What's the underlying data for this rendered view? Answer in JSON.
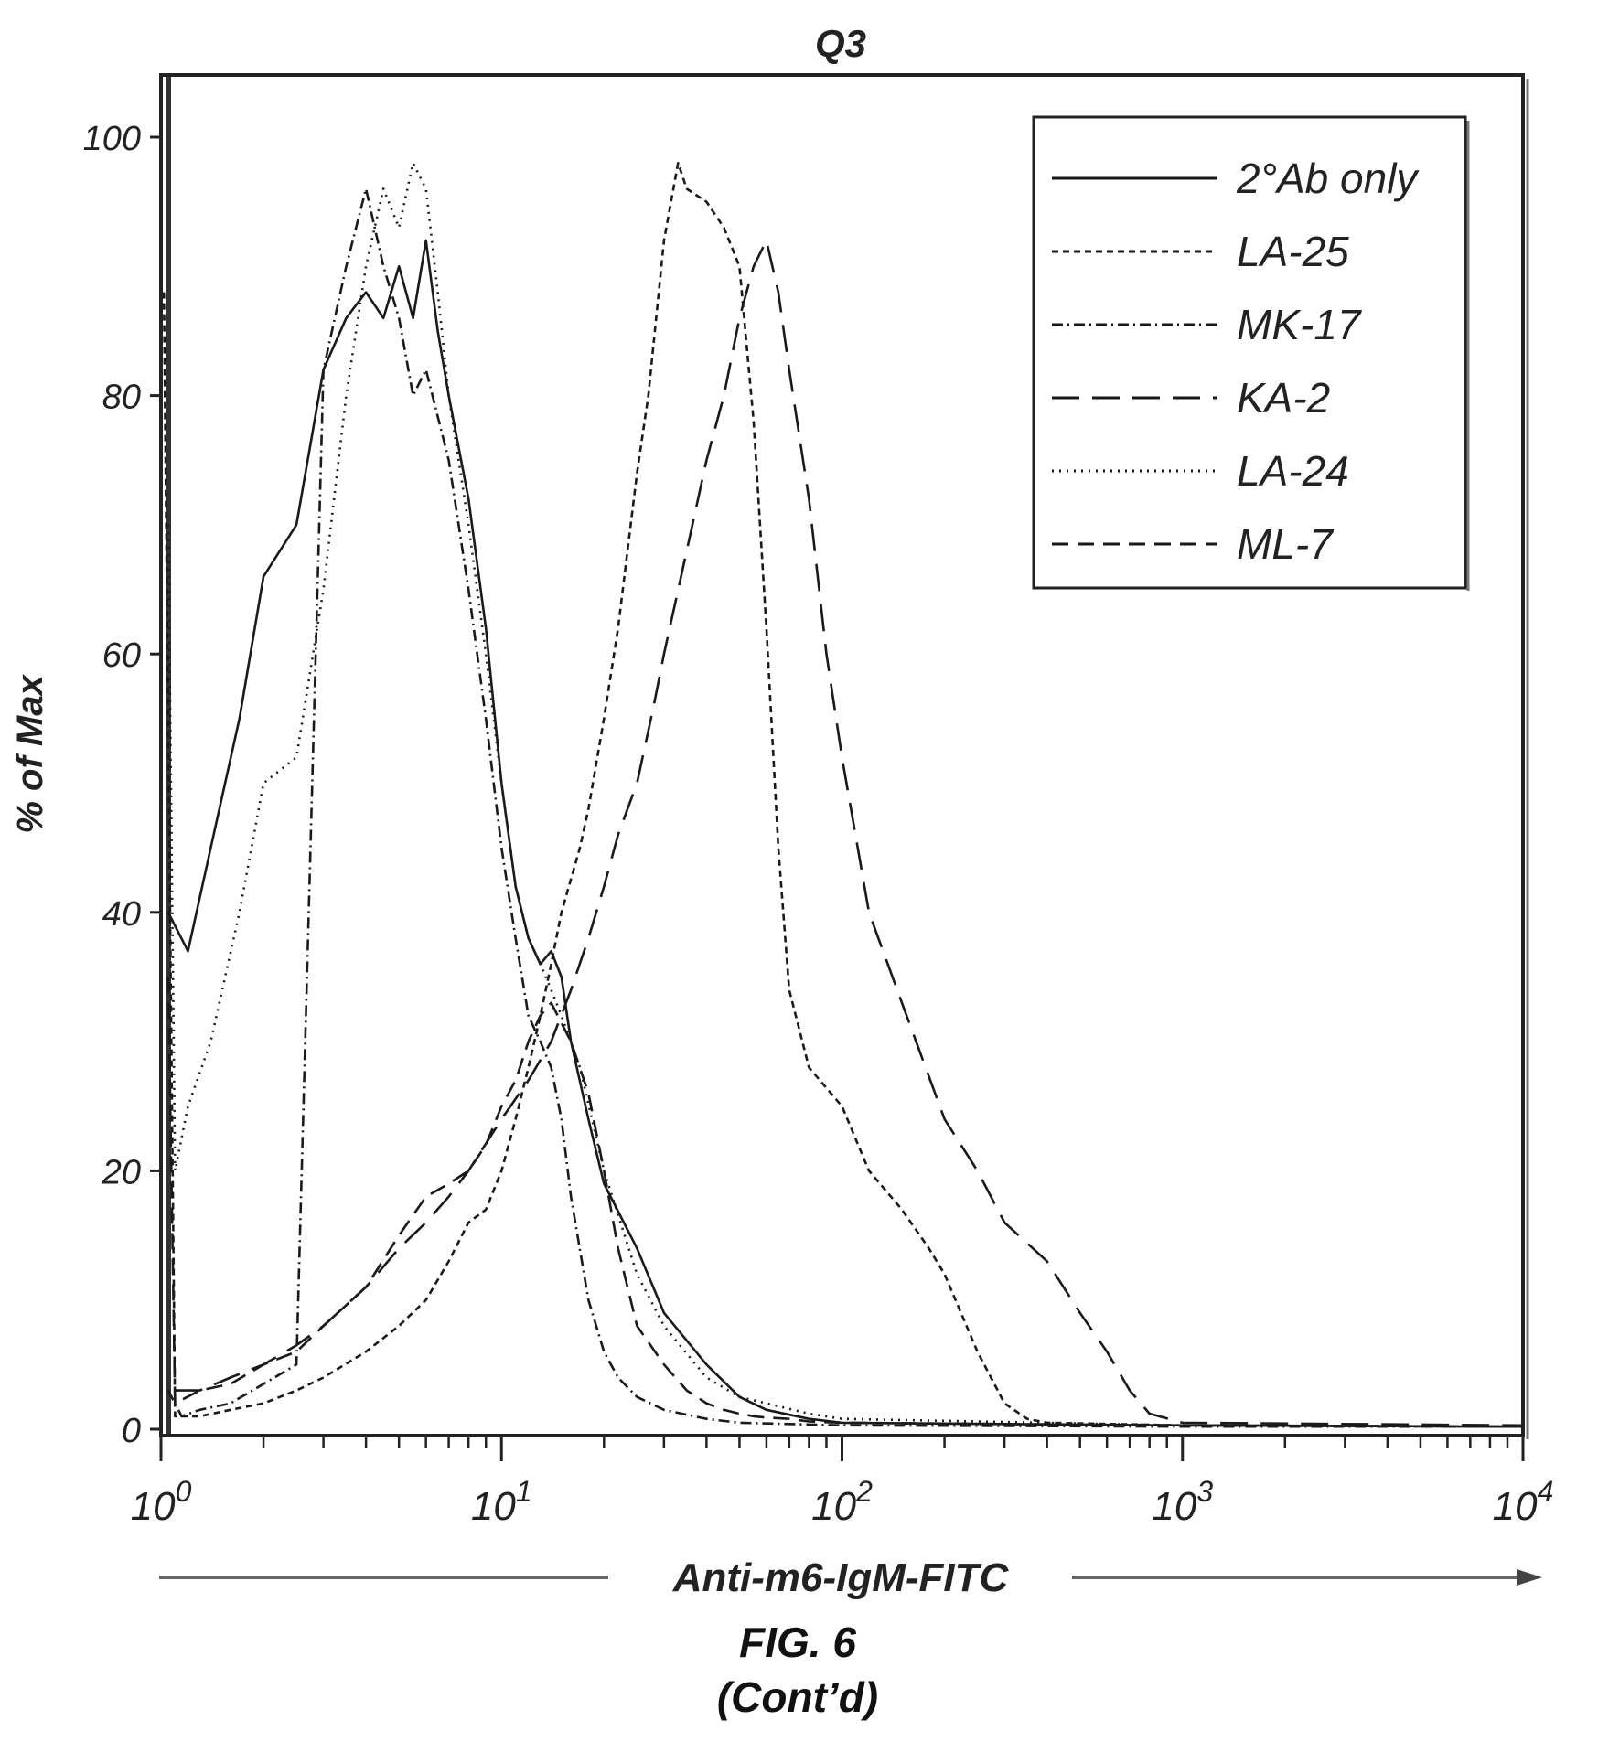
{
  "figure": {
    "caption": "FIG. 6",
    "caption_cont": "(Cont’d)"
  },
  "chart_data": {
    "type": "line",
    "title": "Q3",
    "xlabel": "Anti-m6-IgM-FITC",
    "ylabel": "% of Max",
    "xscale": "log",
    "xlim": [
      1,
      10000
    ],
    "ylim": [
      0,
      105
    ],
    "x_ticks": [
      {
        "value": 1,
        "base": "10",
        "exp": "0"
      },
      {
        "value": 10,
        "base": "10",
        "exp": "1"
      },
      {
        "value": 100,
        "base": "10",
        "exp": "2"
      },
      {
        "value": 1000,
        "base": "10",
        "exp": "3"
      },
      {
        "value": 10000,
        "base": "10",
        "exp": "4"
      }
    ],
    "y_ticks": [
      0,
      20,
      40,
      60,
      80,
      100
    ],
    "legend_position": "top-right",
    "grid": false,
    "series": [
      {
        "name": "2°Ab only",
        "dash": "solid",
        "x": [
          1.05,
          1.2,
          1.4,
          1.7,
          2.0,
          2.5,
          3.0,
          3.5,
          4.0,
          4.5,
          5.0,
          5.5,
          6.0,
          6.5,
          7.0,
          8.0,
          9.0,
          10.0,
          11.0,
          12.0,
          13.0,
          14.0,
          15.0,
          16.0,
          18.0,
          20.0,
          25.0,
          30.0,
          40.0,
          50.0,
          60.0,
          80.0,
          100.0,
          1000.0,
          10000.0
        ],
        "y": [
          40,
          37,
          45,
          55,
          66,
          70,
          82,
          86,
          88,
          86,
          90,
          86,
          92,
          85,
          80,
          72,
          62,
          50,
          42,
          38,
          36,
          37,
          35,
          30,
          24,
          19,
          14,
          9,
          5,
          2.5,
          1.5,
          0.8,
          0.5,
          0.3,
          0.2
        ]
      },
      {
        "name": "LA-25",
        "dash": "short-dash",
        "x": [
          1.02,
          1.1,
          1.3,
          1.6,
          2.0,
          2.5,
          3.0,
          4.0,
          5.0,
          6.0,
          7.0,
          8.0,
          9.0,
          10.0,
          11.0,
          12.0,
          13.0,
          14.0,
          15.0,
          17.0,
          18.0,
          20.0,
          22.0,
          25.0,
          27.0,
          30.0,
          33.0,
          35.0,
          40.0,
          45.0,
          50.0,
          55.0,
          60.0,
          65.0,
          70.0,
          80.0,
          100.0,
          120.0,
          150.0,
          180.0,
          200.0,
          250.0,
          300.0,
          350.0,
          400.0,
          1000.0,
          10000.0
        ],
        "y": [
          88,
          1,
          1,
          1.5,
          2,
          3,
          4,
          6,
          8,
          10,
          13,
          16,
          17,
          20,
          24,
          28,
          32,
          36,
          40,
          45,
          48,
          55,
          62,
          74,
          80,
          92,
          98,
          96,
          95,
          93,
          90,
          78,
          62,
          45,
          34,
          28,
          25,
          20,
          17,
          14,
          12,
          6,
          2,
          0.8,
          0.5,
          0.3,
          0.2
        ]
      },
      {
        "name": "MK-17",
        "dash": "dash-dot",
        "x": [
          1.05,
          1.15,
          1.3,
          1.6,
          2.0,
          2.5,
          3.0,
          3.5,
          4.0,
          4.5,
          5.0,
          5.5,
          6.0,
          7.0,
          8.0,
          9.0,
          10.0,
          11.0,
          12.0,
          13.0,
          14.0,
          15.0,
          16.0,
          18.0,
          20.0,
          22.0,
          25.0,
          30.0,
          40.0,
          50.0,
          100.0,
          1000.0,
          10000.0
        ],
        "y": [
          3,
          1,
          1.5,
          2,
          3.5,
          5,
          82,
          90,
          96,
          90,
          86,
          80,
          82,
          75,
          65,
          55,
          45,
          38,
          32,
          30,
          28,
          24,
          18,
          10,
          6,
          4,
          2.5,
          1.5,
          0.8,
          0.5,
          0.3,
          0.2,
          0.2
        ]
      },
      {
        "name": "KA-2",
        "dash": "long-dash",
        "x": [
          1.1,
          1.3,
          1.6,
          2.0,
          2.5,
          3.0,
          4.0,
          5.0,
          6.0,
          7.0,
          8.0,
          10.0,
          12.0,
          14.0,
          16.0,
          18.0,
          20.0,
          22.0,
          25.0,
          28.0,
          30.0,
          35.0,
          40.0,
          45.0,
          50.0,
          55.0,
          60.0,
          65.0,
          70.0,
          80.0,
          90.0,
          100.0,
          120.0,
          150.0,
          200.0,
          250.0,
          300.0,
          400.0,
          500.0,
          600.0,
          700.0,
          800.0,
          1000.0,
          10000.0
        ],
        "y": [
          3,
          3,
          4,
          5,
          6.5,
          8,
          11,
          14,
          16,
          18,
          20,
          24,
          27,
          30,
          34,
          38,
          42,
          46,
          50,
          56,
          60,
          68,
          75,
          80,
          86,
          90,
          92,
          88,
          82,
          72,
          60,
          52,
          40,
          33,
          24,
          20,
          16,
          13,
          9,
          6,
          3,
          1.2,
          0.5,
          0.3
        ]
      },
      {
        "name": "LA-24",
        "dash": "dotted",
        "x": [
          1.05,
          1.1,
          1.2,
          1.4,
          1.7,
          2.0,
          2.5,
          3.0,
          3.5,
          4.0,
          4.5,
          5.0,
          5.5,
          6.0,
          6.5,
          7.0,
          8.0,
          9.0,
          10.0,
          11.0,
          12.0,
          13.0,
          14.0,
          15.0,
          17.0,
          20.0,
          25.0,
          30.0,
          40.0,
          50.0,
          60.0,
          80.0,
          100.0,
          1000.0,
          10000.0
        ],
        "y": [
          70,
          20,
          25,
          30,
          40,
          50,
          52,
          65,
          80,
          90,
          96,
          93,
          98,
          96,
          88,
          80,
          70,
          60,
          50,
          42,
          38,
          36,
          34,
          32,
          28,
          20,
          12,
          8,
          4,
          2.5,
          2,
          1.2,
          0.8,
          0.3,
          0.2
        ]
      },
      {
        "name": "ML-7",
        "dash": "dash",
        "x": [
          1.05,
          1.1,
          1.3,
          1.6,
          2.0,
          2.5,
          3.0,
          4.0,
          5.0,
          6.0,
          7.0,
          8.0,
          9.0,
          10.0,
          11.0,
          12.0,
          13.0,
          14.0,
          16.0,
          18.0,
          20.0,
          22.0,
          25.0,
          30.0,
          35.0,
          40.0,
          45.0,
          50.0,
          55.0,
          60.0,
          70.0,
          80.0,
          100.0,
          1000.0,
          10000.0
        ],
        "y": [
          35,
          2,
          3,
          3.5,
          5,
          6,
          8,
          11,
          15,
          18,
          19,
          20,
          22,
          25,
          27,
          30,
          32,
          33,
          30,
          26,
          20,
          14,
          8,
          5,
          3,
          2,
          1.5,
          1.2,
          1,
          0.9,
          0.8,
          0.6,
          0.5,
          0.3,
          0.2
        ]
      }
    ]
  }
}
